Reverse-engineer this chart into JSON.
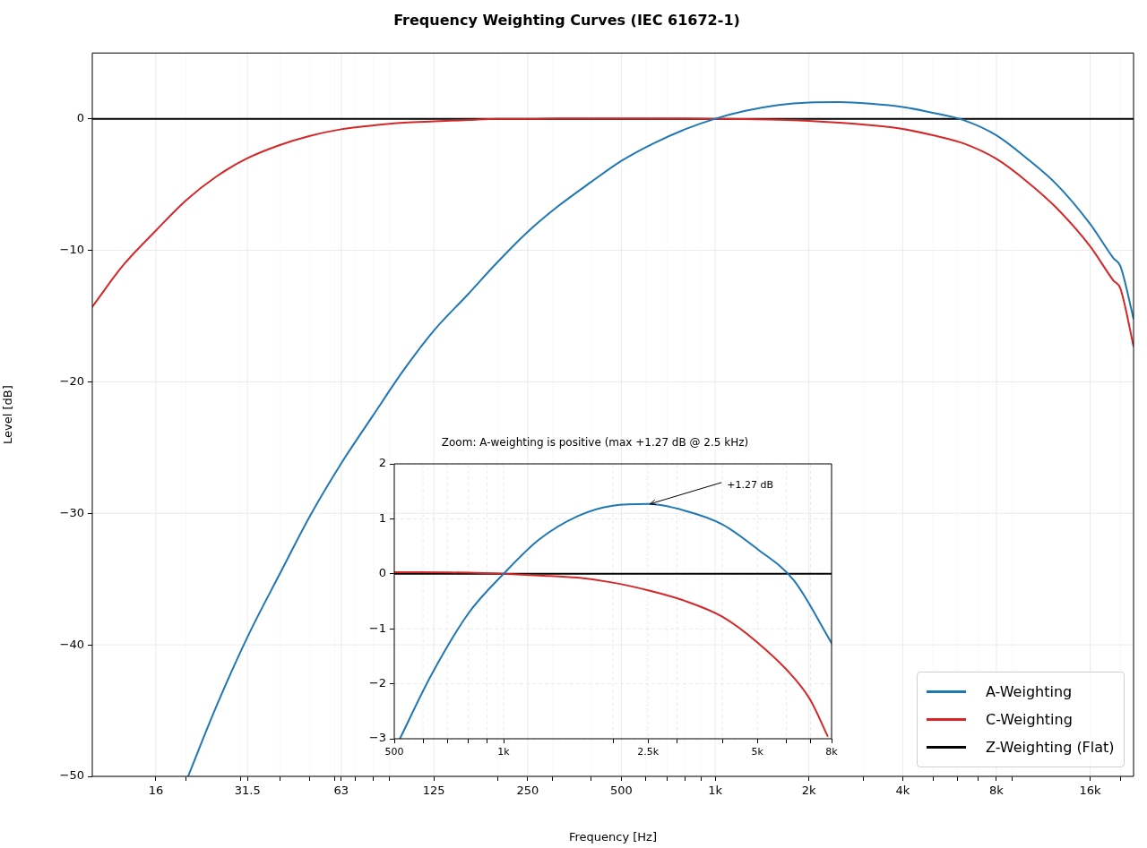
{
  "chart_data": [
    {
      "type": "line",
      "title": "Frequency Weighting Curves (IEC 61672-1)",
      "xlabel": "Frequency [Hz]",
      "ylabel": "Level [dB]",
      "log": "x",
      "grid": true,
      "legend": "bottom right",
      "marker": "none",
      "line_style": "solid",
      "xlim": [
        10,
        22050
      ],
      "ylim": [
        -50,
        5
      ],
      "xticks": [
        16,
        31.5,
        63,
        125,
        250,
        500,
        {
          "value": 1000,
          "label": "1k"
        },
        {
          "value": 2000,
          "label": "2k"
        },
        {
          "value": 4000,
          "label": "4k"
        },
        {
          "value": 8000,
          "label": "8k"
        },
        {
          "value": 16000,
          "label": "16k"
        },
        {
          "value": 20,
          "label": null
        },
        {
          "value": 30,
          "label": null
        },
        {
          "value": 40,
          "label": null
        },
        {
          "value": 50,
          "label": null
        },
        {
          "value": 60,
          "label": null
        },
        {
          "value": 70,
          "label": null
        },
        {
          "value": 80,
          "label": null
        },
        {
          "value": 90,
          "label": null
        },
        {
          "value": 200,
          "label": null
        },
        {
          "value": 300,
          "label": null
        },
        {
          "value": 400,
          "label": null
        },
        {
          "value": 600,
          "label": null
        },
        {
          "value": 700,
          "label": null
        },
        {
          "value": 800,
          "label": null
        },
        {
          "value": 900,
          "label": null
        },
        {
          "value": 3000,
          "label": null
        },
        {
          "value": 5000,
          "label": null
        },
        {
          "value": 6000,
          "label": null
        },
        {
          "value": 7000,
          "label": null
        },
        {
          "value": 9000,
          "label": null
        },
        {
          "value": 20000,
          "label": null
        }
      ],
      "yticks": [
        -50,
        -40,
        -30,
        -20,
        -10,
        0
      ],
      "series": [
        {
          "name": "A-Weighting",
          "color": "#1f77b4",
          "x": [
            20.3,
            25,
            31.5,
            40,
            50,
            63,
            80,
            100,
            125,
            160,
            200,
            250,
            315,
            400,
            500,
            630,
            800,
            1000,
            1250,
            1600,
            2000,
            2500,
            3150,
            4000,
            5000,
            6300,
            8000,
            10000,
            12500,
            16000,
            19000,
            20000,
            22050
          ],
          "values": [
            -50,
            -44.7,
            -39.4,
            -34.6,
            -30.2,
            -26.2,
            -22.5,
            -19.1,
            -16.1,
            -13.4,
            -10.9,
            -8.6,
            -6.6,
            -4.8,
            -3.2,
            -1.9,
            -0.8,
            0,
            0.6,
            1.05,
            1.24,
            1.27,
            1.15,
            0.9,
            0.45,
            -0.12,
            -1.26,
            -3.0,
            -5.0,
            -8.0,
            -10.6,
            -11.2,
            -15.2
          ]
        },
        {
          "name": "C-Weighting",
          "color": "#d62728",
          "x": [
            10,
            12.5,
            16,
            20,
            25,
            31.5,
            40,
            50,
            63,
            80,
            100,
            125,
            160,
            200,
            250,
            315,
            500,
            800,
            1000,
            1250,
            1600,
            2000,
            2500,
            3150,
            4000,
            5000,
            6300,
            8000,
            10000,
            12500,
            16000,
            19000,
            20000,
            22050
          ],
          "values": [
            -14.3,
            -11.2,
            -8.5,
            -6.2,
            -4.4,
            -3.0,
            -2.0,
            -1.3,
            -0.8,
            -0.5,
            -0.3,
            -0.2,
            -0.1,
            0,
            0,
            0.03,
            0.03,
            0.02,
            0,
            -0.03,
            -0.07,
            -0.16,
            -0.3,
            -0.49,
            -0.78,
            -1.25,
            -1.89,
            -3.05,
            -4.75,
            -6.8,
            -9.7,
            -12.3,
            -12.9,
            -17.3
          ]
        },
        {
          "name": "Z-Weighting (Flat)",
          "color": "#000000",
          "x": [
            10,
            22050
          ],
          "values": [
            0,
            0
          ]
        }
      ]
    },
    {
      "type": "line",
      "title": "Zoom: A-weighting is positive (max +1.27 dB @ 2.5 kHz)",
      "log": "x",
      "grid": true,
      "marker": "none",
      "line_style": "solid",
      "xlim": [
        500,
        8000
      ],
      "ylim": [
        -3,
        2
      ],
      "xticks": [
        500,
        {
          "value": 1000,
          "label": "1k"
        },
        {
          "value": 2500,
          "label": "2.5k"
        },
        {
          "value": 5000,
          "label": "5k"
        },
        {
          "value": 8000,
          "label": "8k"
        },
        {
          "value": 600,
          "label": null
        },
        {
          "value": 700,
          "label": null
        },
        {
          "value": 800,
          "label": null
        },
        {
          "value": 900,
          "label": null
        },
        {
          "value": 2000,
          "label": null
        },
        {
          "value": 3000,
          "label": null
        },
        {
          "value": 4000,
          "label": null
        },
        {
          "value": 6000,
          "label": null
        },
        {
          "value": 7000,
          "label": null
        }
      ],
      "yticks": [
        -3,
        -2,
        -1,
        0,
        1,
        2
      ],
      "annotations": [
        {
          "text": "+1.27 dB",
          "x": 2500,
          "y": 1.27
        }
      ],
      "series": [
        {
          "color": "#1f77b4",
          "x": [
            518,
            630,
            800,
            1000,
            1250,
            1600,
            2000,
            2500,
            3150,
            4000,
            5000,
            6300,
            8000
          ],
          "values": [
            -3,
            -1.86,
            -0.72,
            0,
            0.62,
            1.05,
            1.24,
            1.27,
            1.15,
            0.9,
            0.45,
            -0.12,
            -1.26
          ]
        },
        {
          "color": "#d62728",
          "x": [
            500,
            800,
            1000,
            1250,
            1600,
            2000,
            2500,
            3150,
            4000,
            5000,
            6300,
            7000,
            7800
          ],
          "values": [
            0.03,
            0.02,
            0,
            -0.03,
            -0.07,
            -0.16,
            -0.3,
            -0.49,
            -0.78,
            -1.25,
            -1.89,
            -2.3,
            -2.95
          ]
        },
        {
          "color": "#000000",
          "x": [
            500,
            8000
          ],
          "values": [
            0,
            0
          ]
        }
      ]
    }
  ]
}
